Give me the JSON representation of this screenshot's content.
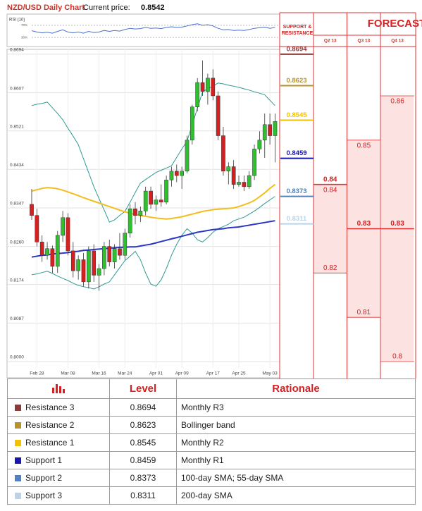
{
  "chart_data": {
    "type": "candlestick",
    "title": "NZD/USD Daily Chart",
    "current_price_label": "Current price:",
    "current_price": 0.8542,
    "categories": [
      null,
      "Feb 28",
      null,
      null,
      null,
      null,
      null,
      "Mar 08",
      null,
      null,
      null,
      null,
      null,
      "Mar 16",
      null,
      null,
      null,
      null,
      "Mar 24",
      null,
      null,
      null,
      null,
      null,
      "Apr 01",
      null,
      null,
      null,
      null,
      "Apr 09",
      null,
      null,
      null,
      null,
      null,
      "Apr 17",
      null,
      null,
      null,
      null,
      "Apr 25",
      null,
      null,
      null,
      null,
      null,
      "May 03",
      null
    ],
    "open": [
      0.8355,
      0.833,
      0.827,
      0.824,
      0.8255,
      0.8215,
      0.8285,
      0.8325,
      0.825,
      0.8205,
      0.823,
      0.818,
      0.825,
      0.8195,
      0.821,
      0.826,
      0.8225,
      0.8255,
      0.824,
      0.829,
      0.8345,
      0.833,
      0.834,
      0.8385,
      0.8355,
      0.8365,
      0.836,
      0.841,
      0.843,
      0.842,
      0.843,
      0.85,
      0.8575,
      0.863,
      0.861,
      0.864,
      0.86,
      0.851,
      0.843,
      0.844,
      0.84,
      0.8405,
      0.8395,
      0.842,
      0.848,
      0.85,
      0.8535,
      0.851
    ],
    "high": [
      0.839,
      0.8345,
      0.8285,
      0.827,
      0.8262,
      0.8295,
      0.834,
      0.8335,
      0.827,
      0.824,
      0.8245,
      0.826,
      0.8265,
      0.822,
      0.827,
      0.8275,
      0.8265,
      0.829,
      0.83,
      0.8355,
      0.836,
      0.835,
      0.8395,
      0.8395,
      0.8375,
      0.84,
      0.842,
      0.844,
      0.8445,
      0.844,
      0.851,
      0.858,
      0.864,
      0.868,
      0.865,
      0.866,
      0.861,
      0.853,
      0.845,
      0.8455,
      0.842,
      0.842,
      0.843,
      0.849,
      0.852,
      0.856,
      0.856,
      0.856
    ],
    "low": [
      0.832,
      0.826,
      0.8225,
      0.823,
      0.82,
      0.82,
      0.827,
      0.824,
      0.819,
      0.8185,
      0.817,
      0.8165,
      0.818,
      0.816,
      0.8195,
      0.8215,
      0.821,
      0.823,
      0.823,
      0.828,
      0.831,
      0.8315,
      0.833,
      0.8345,
      0.834,
      0.835,
      0.8355,
      0.8395,
      0.8405,
      0.839,
      0.8425,
      0.849,
      0.8565,
      0.86,
      0.858,
      0.859,
      0.85,
      0.842,
      0.84,
      0.839,
      0.8395,
      0.8385,
      0.839,
      0.841,
      0.847,
      0.846,
      0.849,
      0.845
    ],
    "close": [
      0.833,
      0.827,
      0.824,
      0.8255,
      0.8215,
      0.8285,
      0.8325,
      0.825,
      0.8205,
      0.823,
      0.818,
      0.825,
      0.8195,
      0.821,
      0.826,
      0.8225,
      0.8255,
      0.824,
      0.829,
      0.8345,
      0.833,
      0.834,
      0.8385,
      0.8355,
      0.8365,
      0.836,
      0.841,
      0.843,
      0.842,
      0.843,
      0.85,
      0.8575,
      0.863,
      0.861,
      0.864,
      0.86,
      0.851,
      0.843,
      0.844,
      0.84,
      0.8405,
      0.8395,
      0.842,
      0.848,
      0.85,
      0.8535,
      0.851,
      0.8542
    ],
    "up_color": "#2fbf2f",
    "down_color": "#d42020",
    "overlays": [
      {
        "color": "#2e9a96",
        "values": [
          0.8578,
          0.8581,
          0.8583,
          0.8586,
          0.8573,
          0.856,
          0.8546,
          0.8527,
          0.8509,
          0.849,
          0.8458,
          0.8427,
          0.8395,
          0.8368,
          0.8342,
          0.8315,
          0.832,
          0.833,
          0.8339,
          0.836,
          0.8382,
          0.8403,
          0.8411,
          0.8419,
          0.8427,
          0.8432,
          0.8437,
          0.8442,
          0.8461,
          0.848,
          0.8498,
          0.8535,
          0.8572,
          0.8609,
          0.8616,
          0.8622,
          0.8629,
          0.8627,
          0.8624,
          0.8622,
          0.8619,
          0.8616,
          0.8613,
          0.8609,
          0.8606,
          0.8602,
          0.859,
          0.8578
        ]
      },
      {
        "color": "#2e9a96",
        "values": [
          0.8196,
          0.8198,
          0.8201,
          0.8204,
          0.8199,
          0.8193,
          0.8188,
          0.8183,
          0.8177,
          0.8172,
          0.8169,
          0.8167,
          0.8164,
          0.8169,
          0.8175,
          0.818,
          0.8196,
          0.8212,
          0.8228,
          0.8238,
          0.8249,
          0.823,
          0.82,
          0.8175,
          0.817,
          0.8185,
          0.821,
          0.824,
          0.8265,
          0.8285,
          0.83,
          0.829,
          0.8275,
          0.827,
          0.828,
          0.8292,
          0.83,
          0.8305,
          0.831,
          0.8318,
          0.8322,
          0.8326,
          0.8333,
          0.834,
          0.8348,
          0.8357,
          0.8365,
          0.8373
        ]
      },
      {
        "color": "#f2bd1d",
        "values": [
          0.8385,
          0.8388,
          0.8391,
          0.8393,
          0.8392,
          0.839,
          0.8387,
          0.8383,
          0.8379,
          0.8375,
          0.837,
          0.8366,
          0.8362,
          0.8358,
          0.8354,
          0.835,
          0.8346,
          0.8342,
          0.8338,
          0.8335,
          0.8332,
          0.833,
          0.8328,
          0.8326,
          0.8324,
          0.8323,
          0.8322,
          0.8323,
          0.8325,
          0.8327,
          0.833,
          0.8333,
          0.8336,
          0.8339,
          0.8341,
          0.8343,
          0.8344,
          0.8345,
          0.8346,
          0.8347,
          0.835,
          0.8354,
          0.8358,
          0.8364,
          0.8372,
          0.8381,
          0.8391,
          0.84
        ]
      },
      {
        "color": "#2b35c4",
        "values": [
          0.8236,
          0.8238,
          0.824,
          0.8241,
          0.8243,
          0.8244,
          0.8245,
          0.8246,
          0.8248,
          0.8249,
          0.8251,
          0.8252,
          0.8253,
          0.8254,
          0.8255,
          0.8256,
          0.8257,
          0.8258,
          0.8258,
          0.8259,
          0.8259,
          0.8261,
          0.8263,
          0.8265,
          0.8268,
          0.8271,
          0.8274,
          0.8277,
          0.828,
          0.8283,
          0.8286,
          0.8289,
          0.8292,
          0.8294,
          0.8296,
          0.8298,
          0.8299,
          0.83,
          0.8302,
          0.8303,
          0.8304,
          0.8306,
          0.8308,
          0.831,
          0.8312,
          0.8314,
          0.8316,
          0.8318
        ]
      }
    ],
    "ylim": [
      0.7965,
      0.8705
    ],
    "yticks": [
      {
        "value": 0.8,
        "label": "0.8000"
      },
      0.8087,
      0.8174,
      {
        "value": 0.826,
        "label": "0.8260"
      },
      0.8347,
      0.8434,
      0.8521,
      0.8607,
      0.8694
    ],
    "grid": true,
    "rsi": {
      "label": "RSI (10)",
      "color": "#4a6fd0",
      "ylim": [
        0,
        100
      ],
      "yticks": [
        {
          "value": 30,
          "label": "30%"
        },
        {
          "value": 70,
          "label": "70%"
        }
      ],
      "values": [
        52,
        48,
        45,
        47,
        44,
        50,
        55,
        48,
        45,
        48,
        44,
        50,
        46,
        48,
        53,
        50,
        53,
        51,
        56,
        60,
        58,
        59,
        63,
        60,
        61,
        59,
        63,
        65,
        63,
        64,
        68,
        72,
        75,
        70,
        72,
        68,
        60,
        55,
        56,
        53,
        54,
        53,
        56,
        60,
        62,
        64,
        60,
        63
      ]
    }
  },
  "levels_header": "SUPPORT & RESISTANCE",
  "forecasts": {
    "title": "FORECASTS",
    "columns": [
      {
        "label": "Q2 13",
        "high": 0.84,
        "median": 0.84,
        "low": 0.82
      },
      {
        "label": "Q3 13",
        "high": 0.85,
        "median": 0.83,
        "low": 0.81
      },
      {
        "label": "Q4 13",
        "high": 0.86,
        "median": 0.83,
        "low": 0.8
      }
    ]
  },
  "table": {
    "columns": [
      "Level",
      "Rationale"
    ],
    "rows": [
      {
        "name": "Resistance 3",
        "color": "#8c3b3b",
        "value": 0.8694,
        "rationale": "Monthly R3"
      },
      {
        "name": "Resistance 2",
        "color": "#b8922a",
        "value": 0.8623,
        "rationale": "Bollinger band"
      },
      {
        "name": "Resistance 1",
        "color": "#f2c200",
        "value": 0.8545,
        "rationale": "Monthly R2"
      },
      {
        "name": "Support 1",
        "color": "#1616b0",
        "value": 0.8459,
        "rationale": "Monthly R1"
      },
      {
        "name": "Support 2",
        "color": "#4f81bd",
        "value": 0.8373,
        "rationale": "100-day SMA; 55-day SMA"
      },
      {
        "name": "Support 3",
        "color": "#b9d3ea",
        "value": 0.8311,
        "rationale": "200-day SMA"
      }
    ]
  }
}
